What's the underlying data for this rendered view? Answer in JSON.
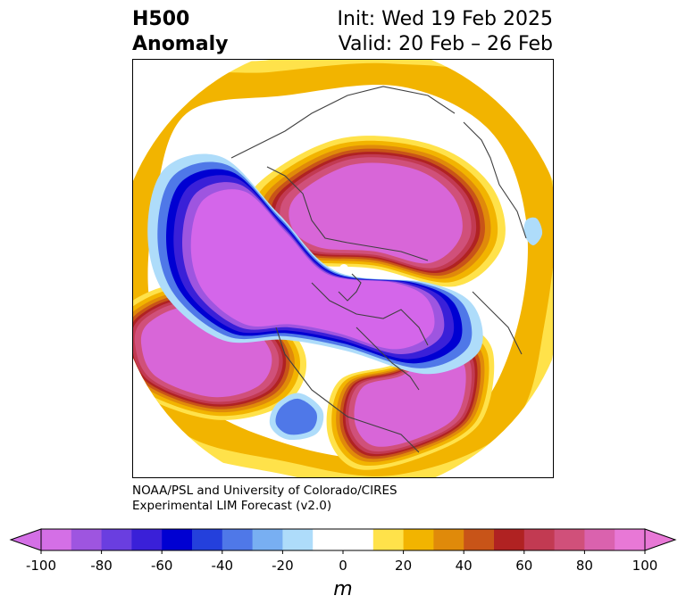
{
  "title": {
    "left_line1": "H500",
    "left_line2": "Anomaly",
    "right_line1": "Init: Wed 19 Feb 2025",
    "right_line2": "Valid: 20 Feb – 26 Feb"
  },
  "credit": {
    "line1": "NOAA/PSL and University of Colorado/CIRES",
    "line2": "Experimental LIM Forecast (v2.0)"
  },
  "colorbar": {
    "unit": "m",
    "ticks": [
      "-100",
      "-80",
      "-60",
      "-40",
      "-20",
      "0",
      "20",
      "40",
      "60",
      "80",
      "100"
    ],
    "colors": [
      "#d46fe6",
      "#9e55e0",
      "#6a3ee0",
      "#3a20d8",
      "#0000d2",
      "#2440dc",
      "#4f78e8",
      "#78aff2",
      "#aedcfa",
      "#ffffff",
      "#ffffff",
      "#ffe24a",
      "#f2b400",
      "#e08a0a",
      "#c85418",
      "#b02222",
      "#c23a52",
      "#d0507a",
      "#da62ae",
      "#e878d6"
    ],
    "under_color": "#d46fe6",
    "over_color": "#e878d6"
  },
  "map": {
    "projection": "north polar stereographic",
    "palette": {
      "neg100": "#d466ea",
      "neg80": "#9e55e0",
      "neg60": "#3a20d8",
      "neg50": "#0000d2",
      "neg40": "#4f78e8",
      "neg20": "#aedcfa",
      "pos20": "#ffe24a",
      "pos30": "#f2b400",
      "pos40": "#e08a0a",
      "pos50": "#c85418",
      "pos60": "#b02222",
      "pos70": "#c23a52",
      "pos80": "#d0507a",
      "pos100": "#d866d8",
      "coast": "#404040"
    }
  }
}
